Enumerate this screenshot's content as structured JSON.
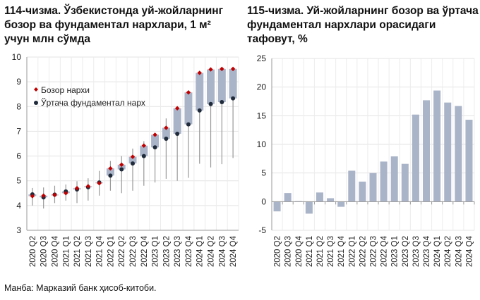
{
  "chart_data": [
    {
      "type": "range",
      "title": "114-чизма. Ўзбекистонда уй-жойларнинг бозор ва фундаментал нархлари, 1 м² учун млн сўмда",
      "categories": [
        "2020 Q2",
        "2020 Q3",
        "2020 Q4",
        "2021 Q1",
        "2021 Q2",
        "2021 Q3",
        "2021 Q4",
        "2022 Q1",
        "2022 Q2",
        "2022 Q3",
        "2022 Q4",
        "2023 Q1",
        "2023 Q2",
        "2023 Q3",
        "2023 Q4",
        "2024 Q1",
        "2024 Q2",
        "2024 Q3",
        "2024 Q4"
      ],
      "ylim": [
        3,
        10
      ],
      "yticks": [
        3,
        4,
        5,
        6,
        7,
        8,
        9,
        10
      ],
      "grid": true,
      "legend_position": "top-left",
      "series": [
        {
          "name": "Бозор нархи",
          "color": "#c00000",
          "values": [
            4.38,
            4.4,
            4.43,
            4.5,
            4.7,
            4.78,
            4.9,
            5.5,
            5.65,
            5.97,
            6.42,
            6.86,
            7.14,
            7.93,
            8.57,
            9.36,
            9.5,
            9.52,
            9.52
          ]
        },
        {
          "name": "Ўртача фундаментал нарх",
          "color": "#1f2a3a",
          "values": [
            4.45,
            4.33,
            4.44,
            4.57,
            4.65,
            4.74,
            4.93,
            5.21,
            5.46,
            5.7,
            6.0,
            6.35,
            6.7,
            6.9,
            7.28,
            7.84,
            8.1,
            8.18,
            8.33
          ]
        }
      ],
      "range_low": [
        4.0,
        3.88,
        4.1,
        4.2,
        4.1,
        4.2,
        4.4,
        4.6,
        4.5,
        4.6,
        4.8,
        4.93,
        5.08,
        5.0,
        5.12,
        5.69,
        5.54,
        5.67,
        5.92
      ],
      "range_high": [
        4.71,
        4.73,
        4.8,
        4.85,
        4.98,
        5.1,
        5.4,
        5.8,
        6.0,
        6.3,
        6.6,
        6.9,
        7.52,
        7.95,
        8.6,
        9.4,
        9.52,
        9.54,
        9.54
      ],
      "bar_color": "#aab4c8"
    },
    {
      "type": "bar",
      "title": "115-чизма. Уй-жойларнинг бозор ва ўртача фундаментал нархлари орасидаги тафовут, %",
      "categories": [
        "2020 Q2",
        "2020 Q3",
        "2020 Q4",
        "2021 Q1",
        "2021 Q2",
        "2021 Q3",
        "2021 Q4",
        "2022 Q1",
        "2022 Q2",
        "2022 Q3",
        "2022 Q4",
        "2023 Q1",
        "2023 Q2",
        "2023 Q3",
        "2023 Q4",
        "2024 Q1",
        "2024 Q2",
        "2024 Q3",
        "2024 Q4"
      ],
      "values": [
        -1.7,
        1.5,
        0.1,
        -2.1,
        1.6,
        0.6,
        -0.9,
        5.4,
        3.5,
        5.0,
        7.0,
        7.9,
        6.6,
        15.2,
        17.7,
        19.4,
        17.3,
        16.7,
        14.3
      ],
      "ylim": [
        -5,
        25
      ],
      "yticks": [
        -5,
        0,
        5,
        10,
        15,
        20,
        25
      ],
      "grid": true,
      "bar_color": "#aab4c8"
    }
  ],
  "source": "Манба: Марказий банк ҳисоб-китоби."
}
